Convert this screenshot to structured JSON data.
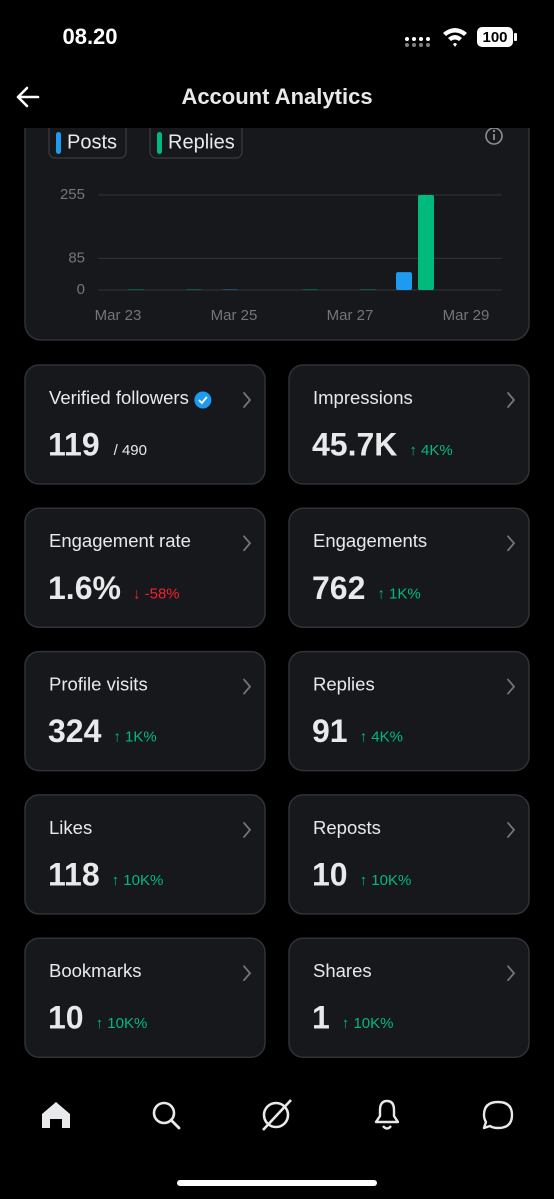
{
  "status_bar": {
    "time": "08.20",
    "battery": "100"
  },
  "header": {
    "title": "Account Analytics"
  },
  "chart_data": {
    "type": "bar",
    "categories": [
      "Mar 23",
      null,
      "Mar 25",
      null,
      "Mar 27",
      null,
      "Mar 29"
    ],
    "series": [
      {
        "name": "Posts",
        "color": "#1d9bf0",
        "values": [
          0,
          0,
          1,
          0,
          0,
          48,
          0
        ]
      },
      {
        "name": "Replies",
        "color": "#00ba7c",
        "values": [
          1,
          1,
          0,
          1,
          1,
          255,
          0
        ]
      }
    ],
    "ylim": [
      0,
      255
    ],
    "yticks": [
      0,
      85,
      255
    ],
    "grid": true
  },
  "cards": [
    {
      "label": "Verified followers",
      "value": "119",
      "total": "/ 490",
      "badge": true
    },
    {
      "label": "Impressions",
      "value": "45.7K",
      "change": "↑ 4K%",
      "trend": "up"
    },
    {
      "label": "Engagement rate",
      "value": "1.6%",
      "change": "↓ -58%",
      "trend": "down"
    },
    {
      "label": "Engagements",
      "value": "762",
      "change": "↑ 1K%",
      "trend": "up"
    },
    {
      "label": "Profile visits",
      "value": "324",
      "change": "↑ 1K%",
      "trend": "up"
    },
    {
      "label": "Replies",
      "value": "91",
      "change": "↑ 4K%",
      "trend": "up"
    },
    {
      "label": "Likes",
      "value": "118",
      "change": "↑ 10K%",
      "trend": "up"
    },
    {
      "label": "Reposts",
      "value": "10",
      "change": "↑ 10K%",
      "trend": "up"
    },
    {
      "label": "Bookmarks",
      "value": "10",
      "change": "↑ 10K%",
      "trend": "up"
    },
    {
      "label": "Shares",
      "value": "1",
      "change": "↑ 10K%",
      "trend": "up"
    }
  ]
}
